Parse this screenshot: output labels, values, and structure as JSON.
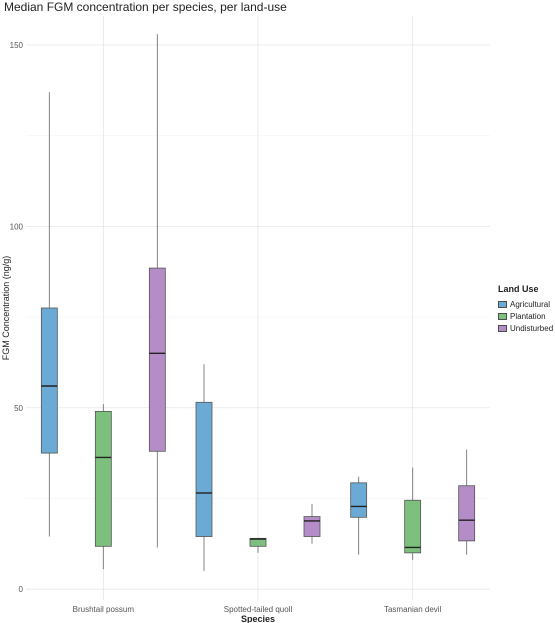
{
  "chart_data": {
    "type": "boxplot",
    "title": "Median FGM concentration per species, per land-use",
    "xlabel": "Species",
    "ylabel": "FGM Concentration (ng/g)",
    "categories": [
      "Brushtail possum",
      "Spotted-tailed quoll",
      "Tasmanian devil"
    ],
    "ylim": [
      -3,
      158
    ],
    "yticks": [
      0,
      50,
      100,
      150
    ],
    "grid": true,
    "legend": {
      "title": "Land Use",
      "placement": "right",
      "entries": [
        "Agricultural",
        "Plantation",
        "Undisturbed"
      ]
    },
    "colors": {
      "Agricultural": "#6aaad4",
      "Plantation": "#7dc07d",
      "Undisturbed": "#b48cc7"
    },
    "series": [
      {
        "name": "Agricultural",
        "boxes": [
          {
            "min": 14.5,
            "q1": 37.5,
            "median": 56,
            "q3": 77.5,
            "max": 137
          },
          {
            "min": 5,
            "q1": 14.5,
            "median": 26.5,
            "q3": 51.5,
            "max": 62
          },
          {
            "min": 9.5,
            "q1": 19.8,
            "median": 22.8,
            "q3": 29.3,
            "max": 31
          }
        ]
      },
      {
        "name": "Plantation",
        "boxes": [
          {
            "min": 5.5,
            "q1": 11.8,
            "median": 36.3,
            "q3": 49,
            "max": 51
          },
          {
            "min": 10,
            "q1": 11.8,
            "median": 13.8,
            "q3": 14,
            "max": 14
          },
          {
            "min": 8,
            "q1": 10,
            "median": 11.5,
            "q3": 24.5,
            "max": 33.5
          }
        ]
      },
      {
        "name": "Undisturbed",
        "boxes": [
          {
            "min": 11.5,
            "q1": 38,
            "median": 65,
            "q3": 88.5,
            "max": 153
          },
          {
            "min": 12.5,
            "q1": 14.5,
            "median": 18.8,
            "q3": 20,
            "max": 23.5
          },
          {
            "min": 9.5,
            "q1": 13.3,
            "median": 19,
            "q3": 28.5,
            "max": 38.5
          }
        ]
      }
    ]
  }
}
